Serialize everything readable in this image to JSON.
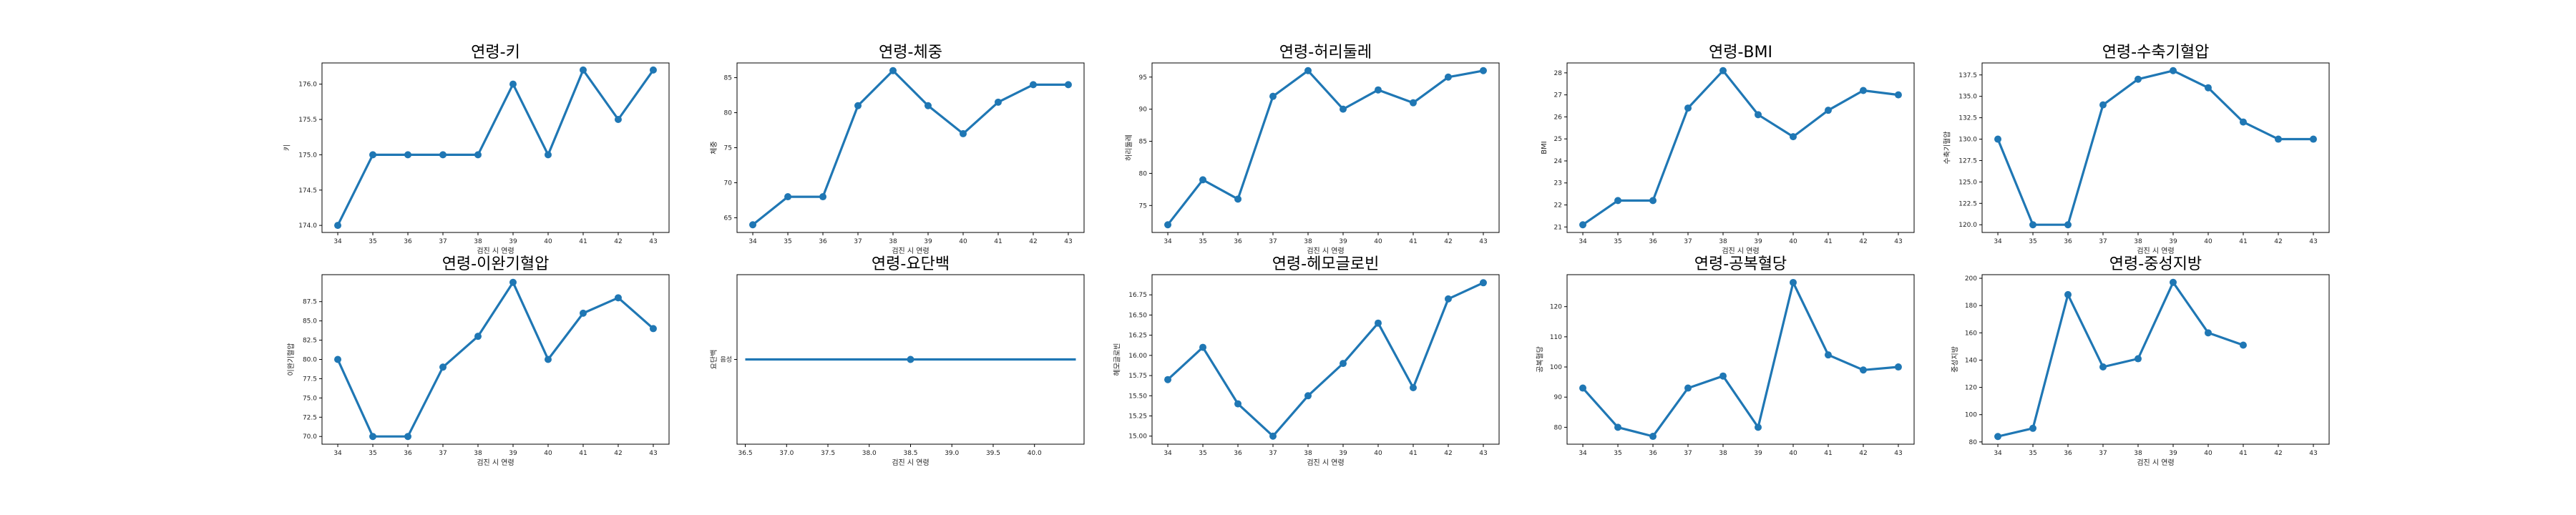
{
  "figure": {
    "line_color": "#1f77b4"
  },
  "chart_data": [
    {
      "type": "line",
      "title": "연령-키",
      "xlabel": "검진 시 연령",
      "ylabel": "키",
      "x": [
        34,
        35,
        36,
        37,
        38,
        39,
        40,
        41,
        42,
        43
      ],
      "y": [
        174,
        175,
        175,
        175,
        175,
        176,
        175,
        176.2,
        175.5,
        176.2
      ],
      "xlim": [
        33.55,
        43.45
      ],
      "ylim": [
        173.9,
        176.3
      ],
      "xticks": [
        34,
        35,
        36,
        37,
        38,
        39,
        40,
        41,
        42,
        43
      ],
      "yticks": [
        174,
        174.5,
        175,
        175.5,
        176
      ],
      "ytick_labels": [
        "174.0",
        "174.5",
        "175.0",
        "175.5",
        "176.0"
      ]
    },
    {
      "type": "line",
      "title": "연령-체중",
      "xlabel": "검진 시 연령",
      "ylabel": "체중",
      "x": [
        34,
        35,
        36,
        37,
        38,
        39,
        40,
        41,
        42,
        43
      ],
      "y": [
        64,
        68,
        68,
        81,
        86,
        81,
        77,
        81.5,
        84,
        84
      ],
      "xlim": [
        33.55,
        43.45
      ],
      "ylim": [
        62.9,
        87.1
      ],
      "xticks": [
        34,
        35,
        36,
        37,
        38,
        39,
        40,
        41,
        42,
        43
      ],
      "yticks": [
        65,
        70,
        75,
        80,
        85
      ],
      "ytick_labels": [
        "65",
        "70",
        "75",
        "80",
        "85"
      ]
    },
    {
      "type": "line",
      "title": "연령-허리둘레",
      "xlabel": "검진 시 연령",
      "ylabel": "허리둘레",
      "x": [
        34,
        35,
        36,
        37,
        38,
        39,
        40,
        41,
        42,
        43
      ],
      "y": [
        72,
        79,
        76,
        92,
        96,
        90,
        93,
        91,
        95,
        96
      ],
      "xlim": [
        33.55,
        43.45
      ],
      "ylim": [
        70.8,
        97.2
      ],
      "xticks": [
        34,
        35,
        36,
        37,
        38,
        39,
        40,
        41,
        42,
        43
      ],
      "yticks": [
        75,
        80,
        85,
        90,
        95
      ],
      "ytick_labels": [
        "75",
        "80",
        "85",
        "90",
        "95"
      ]
    },
    {
      "type": "line",
      "title": "연령-BMI",
      "xlabel": "검진 시 연령",
      "ylabel": "BMI",
      "x": [
        34,
        35,
        36,
        37,
        38,
        39,
        40,
        41,
        42,
        43
      ],
      "y": [
        21.1,
        22.2,
        22.2,
        26.4,
        28.1,
        26.1,
        25.1,
        26.3,
        27.2,
        27
      ],
      "xlim": [
        33.55,
        43.45
      ],
      "ylim": [
        20.75,
        28.45
      ],
      "xticks": [
        34,
        35,
        36,
        37,
        38,
        39,
        40,
        41,
        42,
        43
      ],
      "yticks": [
        21,
        22,
        23,
        24,
        25,
        26,
        27,
        28
      ],
      "ytick_labels": [
        "21",
        "22",
        "23",
        "24",
        "25",
        "26",
        "27",
        "28"
      ]
    },
    {
      "type": "line",
      "title": "연령-수축기혈압",
      "xlabel": "검진 시 연령",
      "ylabel": "수축기혈압",
      "x": [
        34,
        35,
        36,
        37,
        38,
        39,
        40,
        41,
        42,
        43
      ],
      "y": [
        130,
        120,
        120,
        134,
        137,
        138,
        136,
        132,
        130,
        130
      ],
      "xlim": [
        33.55,
        43.45
      ],
      "ylim": [
        119.1,
        138.9
      ],
      "xticks": [
        34,
        35,
        36,
        37,
        38,
        39,
        40,
        41,
        42,
        43
      ],
      "yticks": [
        120,
        122.5,
        125,
        127.5,
        130,
        132.5,
        135,
        137.5
      ],
      "ytick_labels": [
        "120.0",
        "122.5",
        "125.0",
        "127.5",
        "130.0",
        "132.5",
        "135.0",
        "137.5"
      ]
    },
    {
      "type": "line",
      "title": "연령-이완기혈압",
      "xlabel": "검진 시 연령",
      "ylabel": "이완기혈압",
      "x": [
        34,
        35,
        36,
        37,
        38,
        39,
        40,
        41,
        42,
        43
      ],
      "y": [
        80,
        70,
        70,
        79,
        83,
        90,
        80,
        86,
        88,
        84
      ],
      "xlim": [
        33.55,
        43.45
      ],
      "ylim": [
        69,
        91
      ],
      "xticks": [
        34,
        35,
        36,
        37,
        38,
        39,
        40,
        41,
        42,
        43
      ],
      "yticks": [
        70,
        72.5,
        75,
        77.5,
        80,
        82.5,
        85,
        87.5
      ],
      "ytick_labels": [
        "70.0",
        "72.5",
        "75.0",
        "77.5",
        "80.0",
        "82.5",
        "85.0",
        "87.5"
      ]
    },
    {
      "type": "line",
      "title": "연령-요단백",
      "xlabel": "검진 시 연령",
      "ylabel": "요단백",
      "x": [
        36.5,
        38.5,
        40.5
      ],
      "y": [
        0,
        0,
        0
      ],
      "markers": [
        1
      ],
      "xlim": [
        36.4,
        40.6
      ],
      "ylim": [
        -1,
        1
      ],
      "xticks": [
        36.5,
        37,
        37.5,
        38,
        38.5,
        39,
        39.5,
        40
      ],
      "xtick_labels": [
        "36.5",
        "37.0",
        "37.5",
        "38.0",
        "38.5",
        "39.0",
        "39.5",
        "40.0"
      ],
      "yticks": [
        0
      ],
      "ytick_labels": [
        "음성"
      ]
    },
    {
      "type": "line",
      "title": "연령-헤모글로빈",
      "xlabel": "검진 시 연령",
      "ylabel": "헤모글로빈",
      "x": [
        34,
        35,
        36,
        37,
        38,
        39,
        40,
        41,
        42,
        43
      ],
      "y": [
        15.7,
        16.1,
        15.4,
        15,
        15.5,
        15.9,
        16.4,
        15.6,
        16.7,
        16.9
      ],
      "xlim": [
        33.55,
        43.45
      ],
      "ylim": [
        14.9,
        17
      ],
      "xticks": [
        34,
        35,
        36,
        37,
        38,
        39,
        40,
        41,
        42,
        43
      ],
      "yticks": [
        15,
        15.25,
        15.5,
        15.75,
        16,
        16.25,
        16.5,
        16.75
      ],
      "ytick_labels": [
        "15.00",
        "15.25",
        "15.50",
        "15.75",
        "16.00",
        "16.25",
        "16.50",
        "16.75"
      ]
    },
    {
      "type": "line",
      "title": "연령-공복혈당",
      "xlabel": "",
      "ylabel": "공복혈당",
      "x": [
        34,
        35,
        36,
        37,
        38,
        39,
        40,
        41,
        42,
        43
      ],
      "y": [
        93,
        80,
        77,
        93,
        97,
        80,
        128,
        104,
        99,
        100
      ],
      "xlim": [
        33.55,
        43.45
      ],
      "ylim": [
        74.4,
        130.6
      ],
      "xticks": [
        34,
        35,
        36,
        37,
        38,
        39,
        40,
        41,
        42,
        43
      ],
      "yticks": [
        80,
        90,
        100,
        110,
        120
      ],
      "ytick_labels": [
        "80",
        "90",
        "100",
        "110",
        "120"
      ]
    },
    {
      "type": "line",
      "title": "연령-중성지방",
      "xlabel": "검진 시 연령",
      "ylabel": "중성지방",
      "x": [
        34,
        35,
        36,
        37,
        38,
        39,
        40,
        41
      ],
      "y": [
        84,
        90,
        188,
        135,
        141,
        197,
        160,
        151
      ],
      "xlim": [
        33.55,
        43.45
      ],
      "ylim": [
        78.35,
        202.65
      ],
      "xticks": [
        34,
        35,
        36,
        37,
        38,
        39,
        40,
        41,
        42,
        43
      ],
      "yticks": [
        80,
        100,
        120,
        140,
        160,
        180,
        200
      ],
      "ytick_labels": [
        "80",
        "100",
        "120",
        "140",
        "160",
        "180",
        "200"
      ]
    }
  ]
}
